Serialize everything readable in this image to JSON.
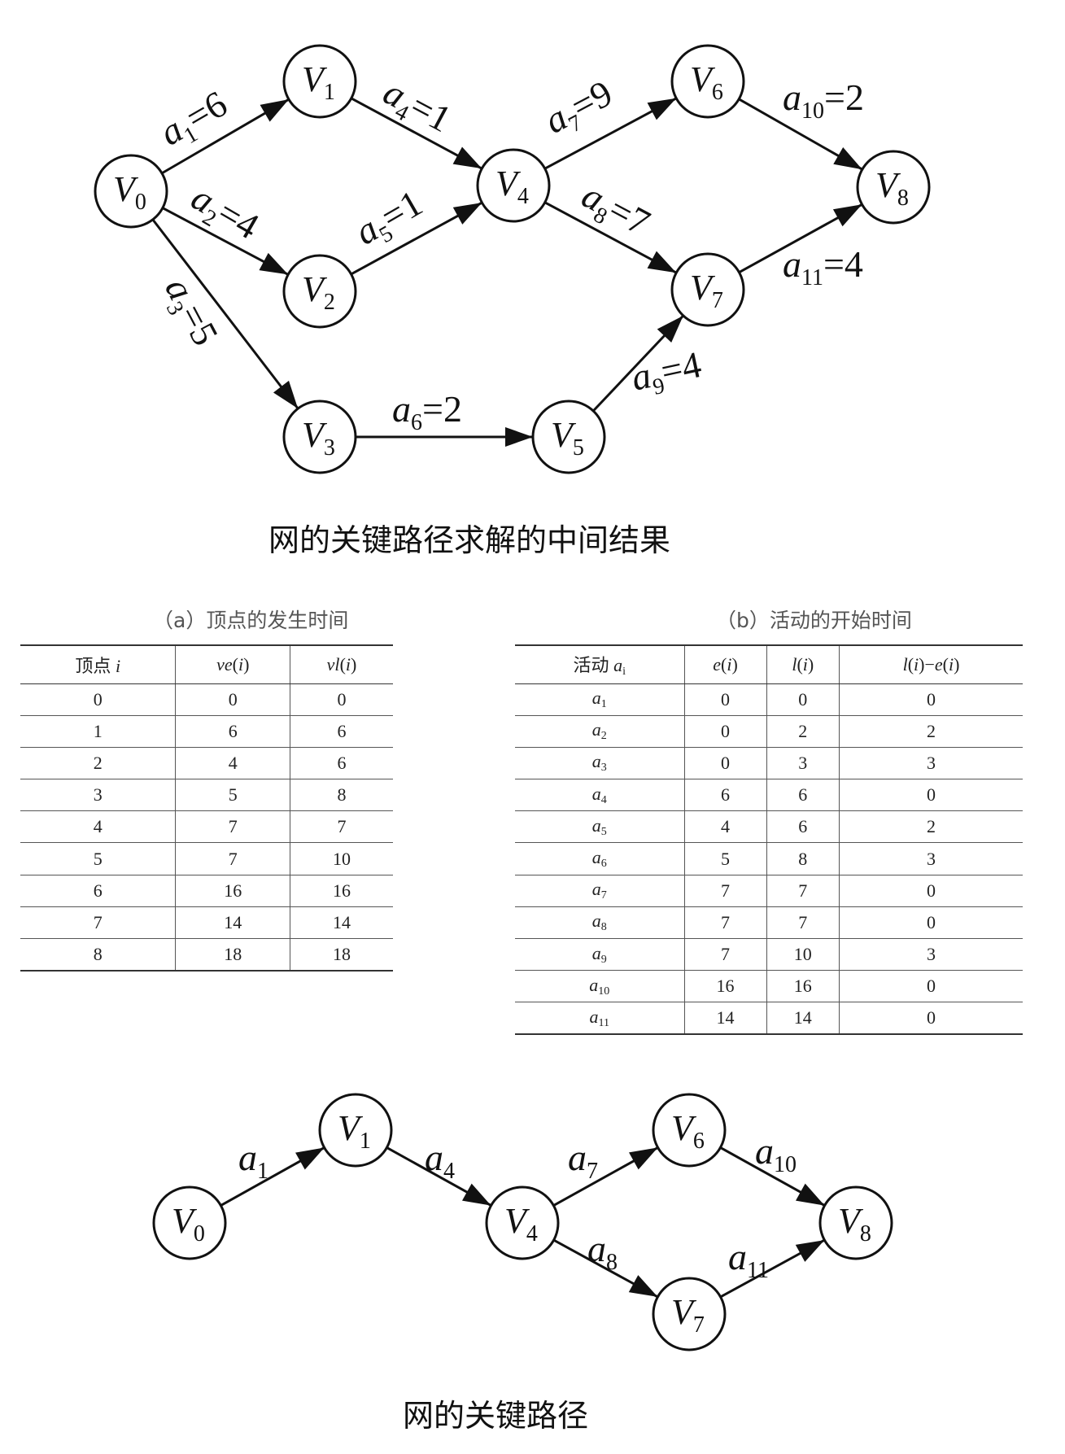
{
  "graph1": {
    "nodes": [
      {
        "id": "V0",
        "sub": "0"
      },
      {
        "id": "V1",
        "sub": "1"
      },
      {
        "id": "V2",
        "sub": "2"
      },
      {
        "id": "V3",
        "sub": "3"
      },
      {
        "id": "V4",
        "sub": "4"
      },
      {
        "id": "V5",
        "sub": "5"
      },
      {
        "id": "V6",
        "sub": "6"
      },
      {
        "id": "V7",
        "sub": "7"
      },
      {
        "id": "V8",
        "sub": "8"
      }
    ],
    "edges": [
      {
        "from": "V0",
        "to": "V1",
        "sub": "1",
        "weight": "6"
      },
      {
        "from": "V0",
        "to": "V2",
        "sub": "2",
        "weight": "4"
      },
      {
        "from": "V0",
        "to": "V3",
        "sub": "3",
        "weight": "5"
      },
      {
        "from": "V1",
        "to": "V4",
        "sub": "4",
        "weight": "1"
      },
      {
        "from": "V2",
        "to": "V4",
        "sub": "5",
        "weight": "1"
      },
      {
        "from": "V3",
        "to": "V5",
        "sub": "6",
        "weight": "2"
      },
      {
        "from": "V4",
        "to": "V6",
        "sub": "7",
        "weight": "9"
      },
      {
        "from": "V4",
        "to": "V7",
        "sub": "8",
        "weight": "7"
      },
      {
        "from": "V5",
        "to": "V7",
        "sub": "9",
        "weight": "4"
      },
      {
        "from": "V6",
        "to": "V8",
        "sub": "10",
        "weight": "2"
      },
      {
        "from": "V7",
        "to": "V8",
        "sub": "11",
        "weight": "4"
      }
    ]
  },
  "caption1": "网的关键路径求解的中间结果",
  "tableA": {
    "caption": "（a）顶点的发生时间",
    "headers": [
      "顶点 i",
      "ve(i)",
      "vl(i)"
    ],
    "rows": [
      [
        "0",
        "0",
        "0"
      ],
      [
        "1",
        "6",
        "6"
      ],
      [
        "2",
        "4",
        "6"
      ],
      [
        "3",
        "5",
        "8"
      ],
      [
        "4",
        "7",
        "7"
      ],
      [
        "5",
        "7",
        "10"
      ],
      [
        "6",
        "16",
        "16"
      ],
      [
        "7",
        "14",
        "14"
      ],
      [
        "8",
        "18",
        "18"
      ]
    ]
  },
  "tableB": {
    "caption": "（b）活动的开始时间",
    "headers": [
      "活动 ai",
      "e(i)",
      "l(i)",
      "l(i)−e(i)"
    ],
    "rows": [
      [
        "a1",
        "0",
        "0",
        "0"
      ],
      [
        "a2",
        "0",
        "2",
        "2"
      ],
      [
        "a3",
        "0",
        "3",
        "3"
      ],
      [
        "a4",
        "6",
        "6",
        "0"
      ],
      [
        "a5",
        "4",
        "6",
        "2"
      ],
      [
        "a6",
        "5",
        "8",
        "3"
      ],
      [
        "a7",
        "7",
        "7",
        "0"
      ],
      [
        "a8",
        "7",
        "7",
        "0"
      ],
      [
        "a9",
        "7",
        "10",
        "3"
      ],
      [
        "a10",
        "16",
        "16",
        "0"
      ],
      [
        "a11",
        "14",
        "14",
        "0"
      ]
    ]
  },
  "graph2": {
    "nodes": [
      {
        "id": "V0",
        "sub": "0"
      },
      {
        "id": "V1",
        "sub": "1"
      },
      {
        "id": "V4",
        "sub": "4"
      },
      {
        "id": "V6",
        "sub": "6"
      },
      {
        "id": "V7",
        "sub": "7"
      },
      {
        "id": "V8",
        "sub": "8"
      }
    ],
    "edges": [
      {
        "from": "V0",
        "to": "V1",
        "sub": "1"
      },
      {
        "from": "V1",
        "to": "V4",
        "sub": "4"
      },
      {
        "from": "V4",
        "to": "V6",
        "sub": "7"
      },
      {
        "from": "V4",
        "to": "V7",
        "sub": "8"
      },
      {
        "from": "V6",
        "to": "V8",
        "sub": "10"
      },
      {
        "from": "V7",
        "to": "V8",
        "sub": "11"
      }
    ]
  },
  "caption2": "网的关键路径"
}
